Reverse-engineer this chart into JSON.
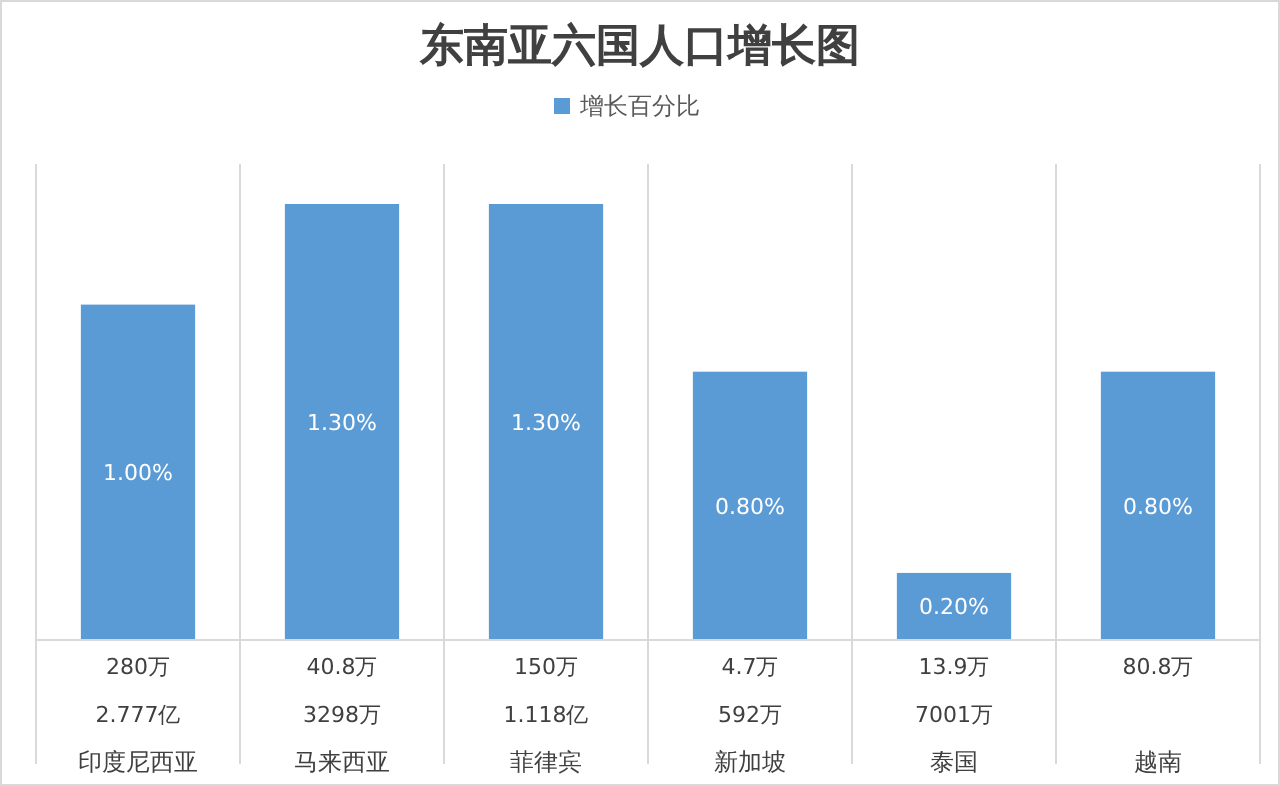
{
  "chart_data": {
    "type": "bar",
    "title": "东南亚六国人口增长图",
    "categories": [
      "印度尼西亚",
      "马来西亚",
      "菲律宾",
      "新加坡",
      "泰国",
      "越南"
    ],
    "series": [
      {
        "name": "增长百分比",
        "color": "#5b9bd5",
        "values": [
          1.0,
          1.3,
          1.3,
          0.8,
          0.2,
          0.8
        ],
        "value_labels": [
          "1.00%",
          "1.30%",
          "1.30%",
          "0.80%",
          "0.20%",
          "0.80%"
        ]
      }
    ],
    "legend": "top",
    "annotations": [
      "280万",
      "2.777亿",
      "40.8万",
      "3298万",
      "150万",
      "1.118亿",
      "4.7万",
      "592万",
      "13.9万",
      "7001万",
      "80.8万"
    ]
  }
}
